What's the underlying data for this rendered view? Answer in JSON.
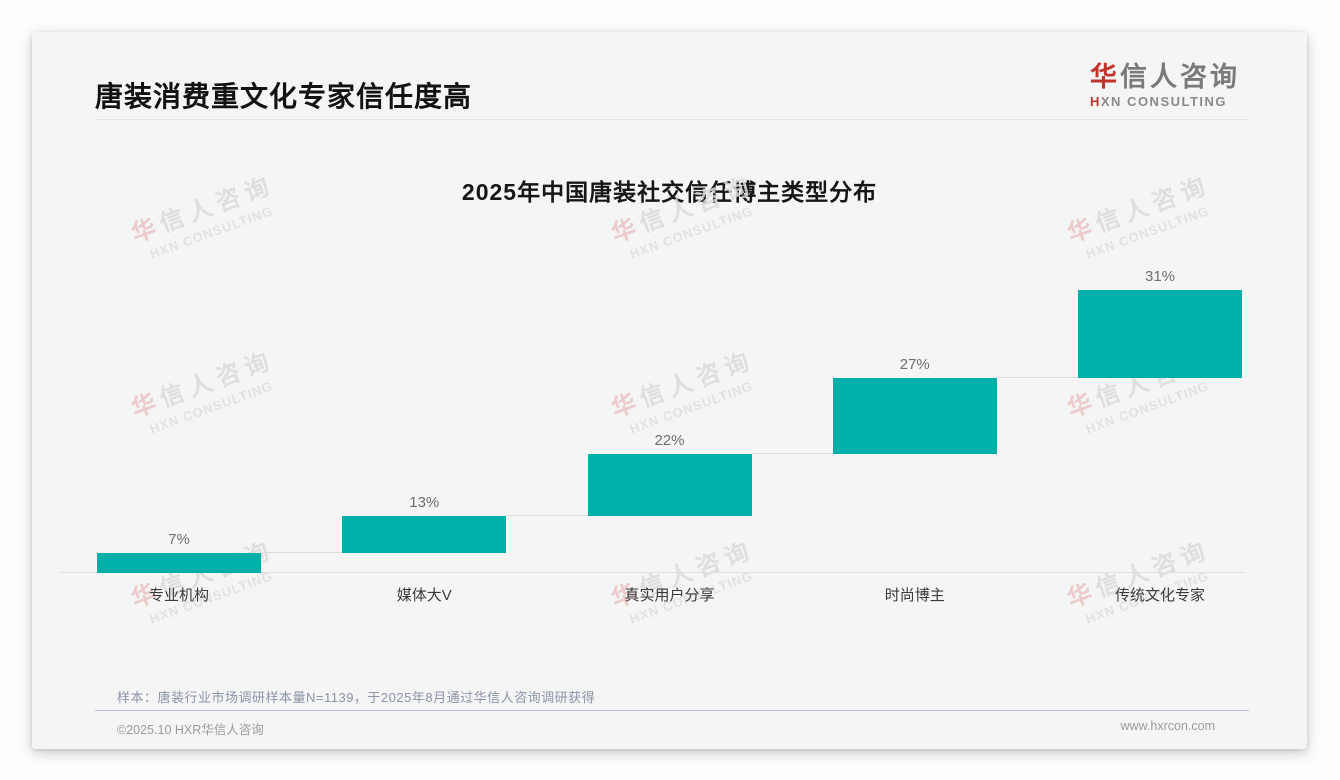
{
  "header": {
    "title": "唐装消费重文化专家信任度高",
    "logo": {
      "cn_first": "华",
      "cn_rest": "信人咨询",
      "en_first": "H",
      "en_rest": "XN CONSULTING"
    }
  },
  "chart_data": {
    "type": "bar",
    "subtype": "waterfall",
    "title": "2025年中国唐装社交信任博主类型分布",
    "categories": [
      "专业机构",
      "媒体大V",
      "真实用户分享",
      "时尚博主",
      "传统文化专家"
    ],
    "values": [
      7,
      13,
      22,
      27,
      31
    ],
    "labels": [
      "7%",
      "13%",
      "22%",
      "27%",
      "31%"
    ],
    "unit": "%",
    "ylim": [
      0,
      100
    ],
    "bar_color": "#00b0a8",
    "grid": "off",
    "legend": "none",
    "note": "each bar starts at the cumulative top of the previous bar; thin connector lines join consecutive bars; totals sum to 100%"
  },
  "watermark": {
    "cn_first": "华",
    "cn_rest": "信人咨询",
    "en": "HXN CONSULTING"
  },
  "note": {
    "text": "样本：唐装行业市场调研样本量N=1139，于2025年8月通过华信人咨询调研获得"
  },
  "footer": {
    "left": "©2025.10 HXR华信人咨询",
    "right": "www.hxrcon.com"
  },
  "colors": {
    "accent": "#00b0a8",
    "brand_red": "#c0342c",
    "logo_gray": "#7a7a7a",
    "note_blue_gray": "#8a94a6"
  }
}
